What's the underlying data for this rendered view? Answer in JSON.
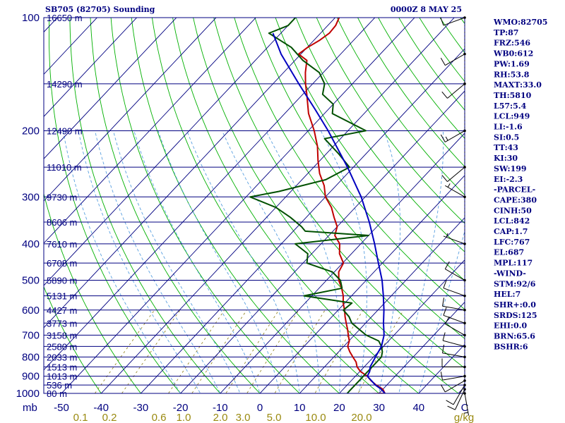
{
  "header": {
    "station": "SB705 (82705) Sounding",
    "time": "0000Z  8 MAY 25"
  },
  "chart_data": {
    "type": "line",
    "title": "SB705 (82705) Sounding",
    "xlabel": "",
    "ylabel": "mb",
    "y_scale": "log",
    "ylim": [
      1000,
      100
    ],
    "xlim": [
      -50,
      50
    ],
    "pressure_ticks": [
      100,
      200,
      300,
      400,
      500,
      600,
      700,
      800,
      900,
      1000
    ],
    "temperature_ticks": [
      "-50",
      "-40",
      "-30",
      "-20",
      "-10",
      "0",
      "10",
      "20",
      "30",
      "40",
      "C"
    ],
    "isobars": [
      100,
      150,
      200,
      250,
      300,
      350,
      400,
      450,
      500,
      550,
      600,
      650,
      700,
      750,
      800,
      850,
      900,
      950,
      1000
    ],
    "heights": [
      {
        "p": 100,
        "label": "16650 m"
      },
      {
        "p": 150,
        "label": "14290 m"
      },
      {
        "p": 200,
        "label": "12490 m"
      },
      {
        "p": 250,
        "label": "11010 m"
      },
      {
        "p": 300,
        "label": "9730 m"
      },
      {
        "p": 350,
        "label": "8606 m"
      },
      {
        "p": 400,
        "label": "7610 m"
      },
      {
        "p": 450,
        "label": "6708 m"
      },
      {
        "p": 500,
        "label": "5890 m"
      },
      {
        "p": 550,
        "label": "5131 m"
      },
      {
        "p": 600,
        "label": "4427 m"
      },
      {
        "p": 650,
        "label": "3773 m"
      },
      {
        "p": 700,
        "label": "3158 m"
      },
      {
        "p": 750,
        "label": "2580 m"
      },
      {
        "p": 800,
        "label": "2033 m"
      },
      {
        "p": 850,
        "label": "1513 m"
      },
      {
        "p": 900,
        "label": "1013 m"
      },
      {
        "p": 950,
        "label": "536 m"
      },
      {
        "p": 1000,
        "label": "80 m"
      }
    ],
    "mixing_ratio_labels": [
      "0.1",
      "0.2",
      "0.6",
      "1.0",
      "2.0",
      "3.0",
      "5.0",
      "10.0",
      "20.0",
      "g/kg"
    ],
    "series": [
      {
        "role": "temperature",
        "color": "#c00000",
        "p": [
          1003,
          1000,
          975,
          950,
          925,
          900,
          875,
          850,
          825,
          800,
          775,
          750,
          725,
          700,
          675,
          650,
          625,
          600,
          575,
          550,
          525,
          500,
          475,
          450,
          425,
          400,
          380,
          360,
          340,
          320,
          300,
          280,
          260,
          240,
          220,
          200,
          180,
          160,
          150,
          140,
          130,
          125,
          120,
          115,
          110,
          105,
          100
        ],
        "x": [
          26.4,
          31.5,
          30.0,
          27.3,
          25.0,
          23.0,
          20.2,
          18.2,
          16.8,
          14.8,
          12.8,
          11.0,
          10.1,
          8.5,
          6.9,
          5.1,
          3.3,
          1.6,
          -0.4,
          -2.1,
          -4.3,
          -6.9,
          -8.9,
          -9.8,
          -13.0,
          -15.3,
          -18.5,
          -20.0,
          -23.0,
          -26.0,
          -30.0,
          -33.0,
          -37.0,
          -40.5,
          -44.0,
          -48.5,
          -54.0,
          -59.0,
          -61.8,
          -64.5,
          -67.0,
          -70.6,
          -69.9,
          -68.6,
          -67.8,
          -68.0,
          -69.0
        ]
      },
      {
        "role": "dewpoint",
        "color": "#005000",
        "p": [
          1000,
          975,
          950,
          925,
          900,
          875,
          850,
          825,
          800,
          775,
          750,
          725,
          700,
          675,
          650,
          625,
          600,
          575,
          550,
          525,
          500,
          475,
          450,
          425,
          400,
          380,
          370,
          360,
          340,
          320,
          300,
          290,
          270,
          250,
          230,
          210,
          200,
          180,
          170,
          160,
          150,
          140,
          130,
          120,
          110,
          105,
          100
        ],
        "x": [
          22.0,
          22.0,
          22.0,
          22.0,
          22.0,
          22.0,
          22.0,
          22.0,
          22.0,
          21.0,
          19.5,
          17.5,
          13.0,
          9.8,
          6.5,
          4.3,
          1.3,
          1.8,
          -12.0,
          -4.2,
          -6.5,
          -10.5,
          -19.0,
          -21.0,
          -26.5,
          -10.0,
          -27.0,
          -29.0,
          -34.0,
          -40.0,
          -49.0,
          -43.0,
          -34.0,
          -31.0,
          -37.0,
          -44.0,
          -35.5,
          -48.0,
          -50.0,
          -55.0,
          -57.0,
          -61.0,
          -68.0,
          -74.0,
          -83.0,
          -80.0,
          -80.0
        ]
      },
      {
        "role": "parcel",
        "color": "#0000c0",
        "p": [
          1000,
          975,
          950,
          925,
          900,
          875,
          850,
          800,
          750,
          700,
          650,
          600,
          550,
          500,
          450,
          400,
          350,
          300,
          250,
          200,
          175,
          150,
          125,
          110
        ],
        "x": [
          31.5,
          29.6,
          27.1,
          25.1,
          23.0,
          22.5,
          21.5,
          20.5,
          19.5,
          17.5,
          14.5,
          11.5,
          8.0,
          4.0,
          -1.0,
          -6.5,
          -13.0,
          -21.0,
          -31.5,
          -45.0,
          -53.5,
          -63.5,
          -75.0,
          -82.0
        ]
      }
    ],
    "winds": [
      {
        "p": 1000,
        "dir": 170,
        "spd": 5
      },
      {
        "p": 975,
        "dir": 205,
        "spd": 10
      },
      {
        "p": 950,
        "dir": 210,
        "spd": 10
      },
      {
        "p": 925,
        "dir": 240,
        "spd": 10
      },
      {
        "p": 900,
        "dir": 260,
        "spd": 10
      },
      {
        "p": 850,
        "dir": 270,
        "spd": 10
      },
      {
        "p": 800,
        "dir": 280,
        "spd": 10
      },
      {
        "p": 750,
        "dir": 285,
        "spd": 10
      },
      {
        "p": 700,
        "dir": 300,
        "spd": 10
      },
      {
        "p": 650,
        "dir": 290,
        "spd": 10
      },
      {
        "p": 600,
        "dir": 280,
        "spd": 10
      },
      {
        "p": 550,
        "dir": 290,
        "spd": 10
      },
      {
        "p": 500,
        "dir": 300,
        "spd": 10
      },
      {
        "p": 400,
        "dir": 290,
        "spd": 5
      },
      {
        "p": 300,
        "dir": 300,
        "spd": 5
      },
      {
        "p": 250,
        "dir": 230,
        "spd": 10
      },
      {
        "p": 200,
        "dir": 240,
        "spd": 15
      },
      {
        "p": 150,
        "dir": 230,
        "spd": 10
      },
      {
        "p": 125,
        "dir": 240,
        "spd": 10
      },
      {
        "p": 100,
        "dir": 250,
        "spd": 10
      }
    ]
  },
  "indices": [
    "WMO:82705",
    "TP:87",
    "FRZ:546",
    "WB0:612",
    "PW:1.69",
    "RH:53.8",
    "MAXT:33.0",
    "TH:5810",
    "L57:5.4",
    "LCL:949",
    "LI:-1.6",
    "SI:0.5",
    "TT:43",
    "KI:30",
    "SW:199",
    "EI:-2.3",
    "-PARCEL-",
    "CAPE:380",
    "CINH:50",
    "LCL:842",
    "CAP:1.7",
    "LFC:767",
    "EL:687",
    "MPL:117",
    "-WIND-",
    "STM:92/6",
    "HEL:7",
    "SHR+:0.0",
    "SRDS:125",
    "EHI:0.0",
    "BRN:65.6",
    "BSHR:6"
  ],
  "colors": {
    "frame": "#000080",
    "isobar": "#000080",
    "isotherm": "#000080",
    "dry_adiabat": "#00b000",
    "moist_adiabat": "#5aa0e0",
    "mixing_ratio": "#8a7a10"
  }
}
